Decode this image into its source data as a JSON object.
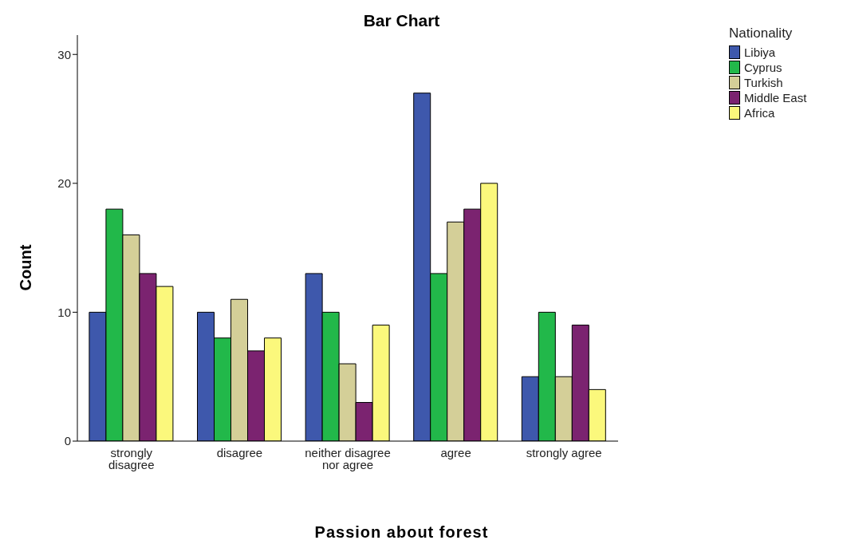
{
  "chart_data": {
    "type": "bar",
    "title": "Bar Chart",
    "xlabel": "Passion about forest",
    "ylabel": "Count",
    "legend_title": "Nationality",
    "categories": [
      "strongly disagree",
      "disagree",
      "neither disagree nor agree",
      "agree",
      "strongly agree"
    ],
    "series": [
      {
        "name": "Libiya",
        "color": "#3e58ac",
        "values": [
          10,
          10,
          13,
          27,
          5
        ]
      },
      {
        "name": "Cyprus",
        "color": "#22b84a",
        "values": [
          18,
          8,
          10,
          13,
          10
        ]
      },
      {
        "name": "Turkish",
        "color": "#d4cf98",
        "values": [
          16,
          11,
          6,
          17,
          5
        ]
      },
      {
        "name": "Middle East",
        "color": "#7b2370",
        "values": [
          13,
          7,
          3,
          18,
          9
        ]
      },
      {
        "name": "Africa",
        "color": "#fbf87c",
        "values": [
          12,
          8,
          9,
          20,
          4
        ]
      }
    ],
    "ylim": [
      0,
      31.5
    ],
    "yticks": [
      0,
      10,
      20,
      30
    ],
    "grid": false,
    "legend": "right"
  }
}
